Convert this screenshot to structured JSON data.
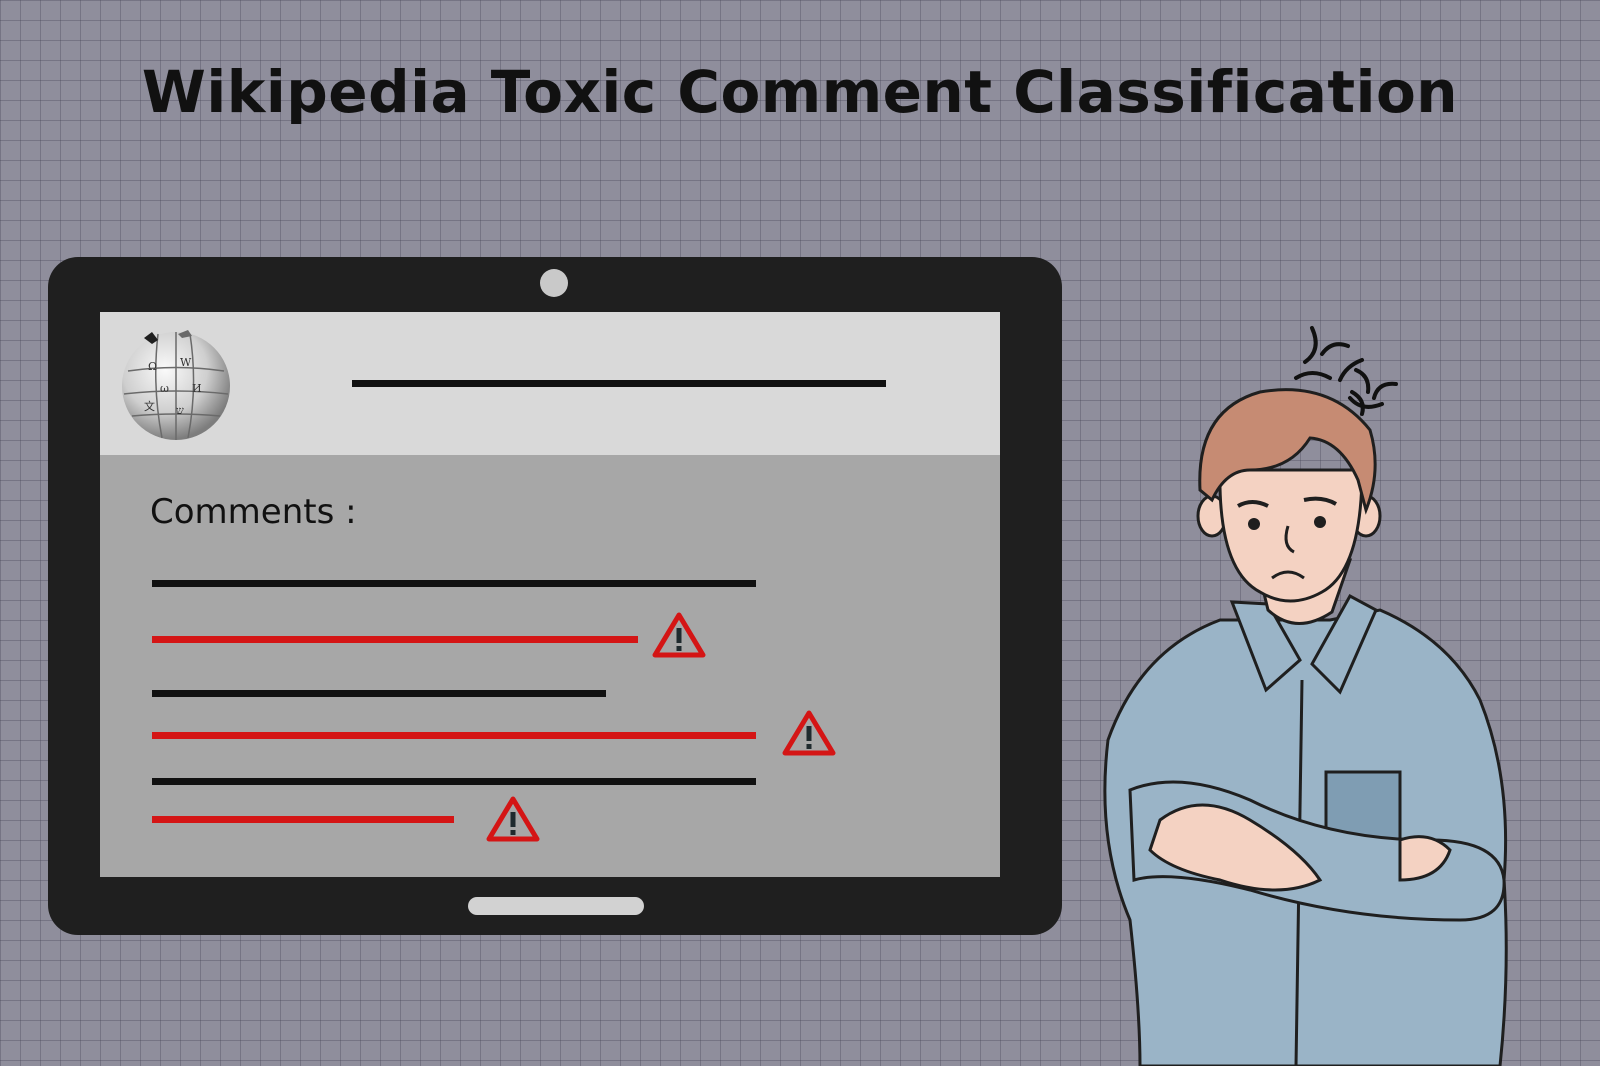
{
  "title": "Wikipedia Toxic Comment Classification",
  "screen": {
    "comments_label": "Comments :"
  },
  "icons": {
    "logo": "wikipedia-globe-icon",
    "warning": "warning-triangle-icon",
    "anger": "anger-mark-icon"
  },
  "colors": {
    "background": "#8f8e9c",
    "tablet": "#1f1f1f",
    "toxic": "#d41515",
    "neutral": "#111111",
    "shirt": "#9ab4c7"
  }
}
